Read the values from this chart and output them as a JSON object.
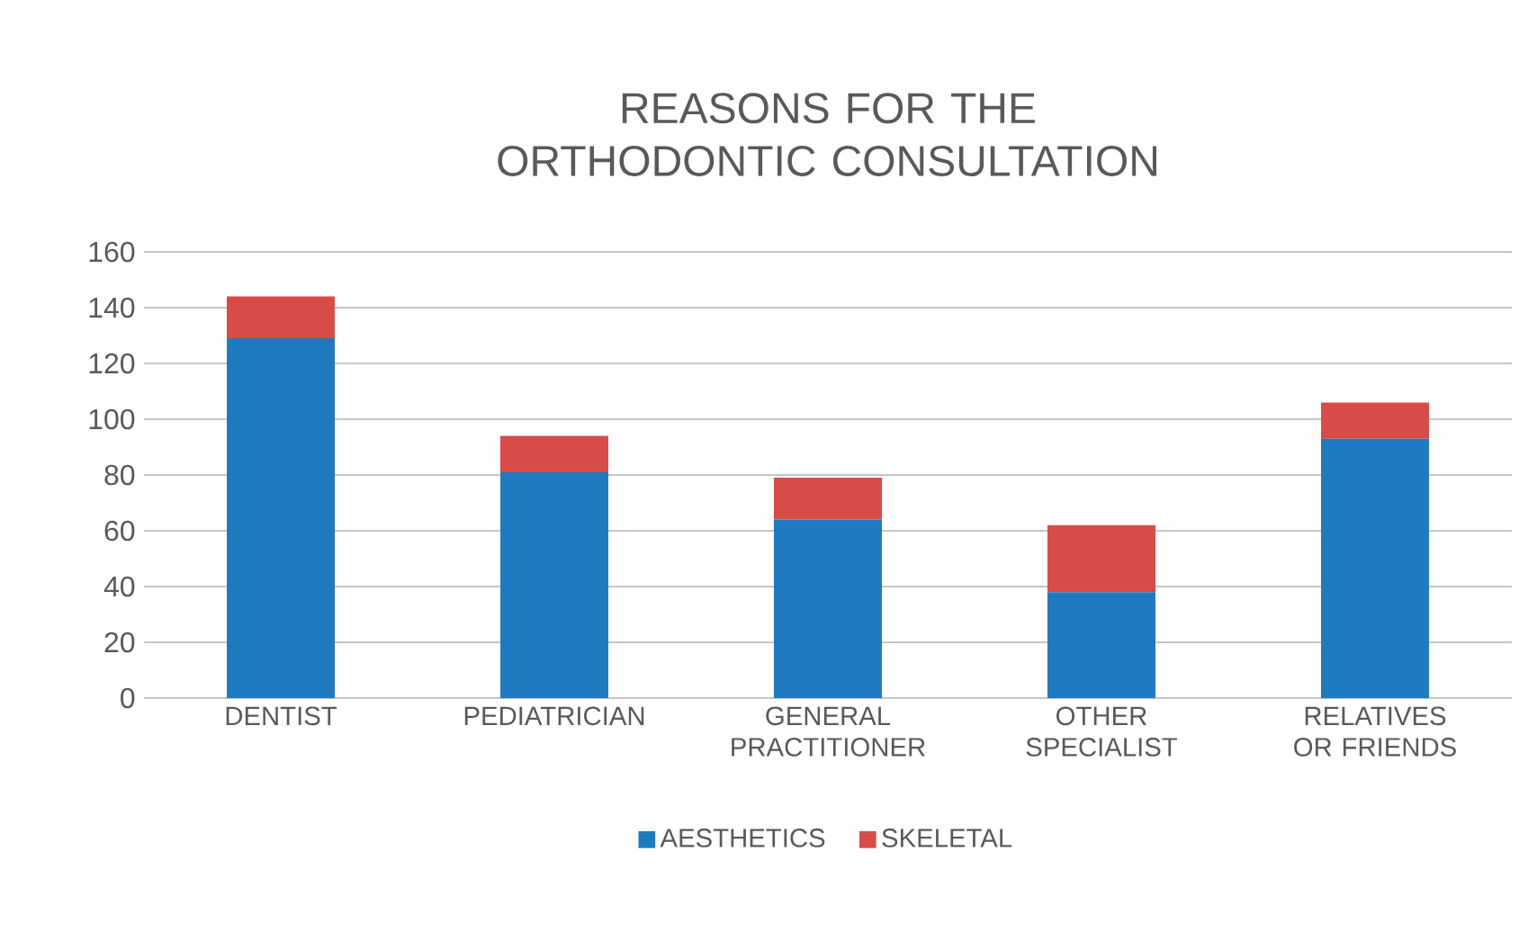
{
  "chart_data": {
    "type": "bar",
    "title": "REASONS FOR THE ORTHODONTIC CONSULTATION",
    "categories": [
      "DENTIST",
      "PEDIATRICIAN",
      "GENERAL PRACTITIONER",
      "OTHER SPECIALIST",
      "RELATIVES OR FRIENDS"
    ],
    "series": [
      {
        "name": "AESTHETICS",
        "color": "#1f7bbf",
        "values": [
          129,
          81,
          64,
          38,
          93
        ]
      },
      {
        "name": "SKELETAL",
        "color": "#d94b47",
        "values": [
          15,
          13,
          15,
          24,
          13
        ]
      }
    ],
    "stacked": true,
    "ylim": [
      0,
      160
    ],
    "yticks": [
      0,
      20,
      40,
      60,
      80,
      100,
      120,
      140,
      160
    ],
    "grid": "y",
    "legend": "bottom"
  }
}
